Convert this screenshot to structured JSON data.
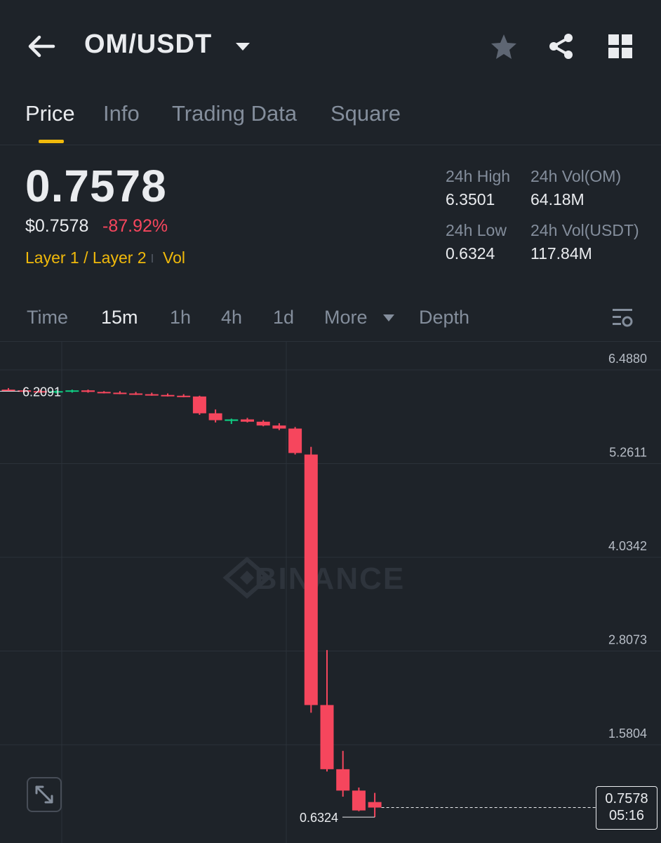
{
  "header": {
    "pair": "OM/USDT",
    "icons": [
      "back-arrow-icon",
      "chevron-down-icon",
      "star-icon",
      "share-icon",
      "grid-icon"
    ]
  },
  "tabs": [
    {
      "label": "Price",
      "active": true
    },
    {
      "label": "Info",
      "active": false
    },
    {
      "label": "Trading Data",
      "active": false
    },
    {
      "label": "Square",
      "active": false
    }
  ],
  "ticker": {
    "last_price": "0.7578",
    "usd_price": "$0.7578",
    "change_pct": "-87.92%",
    "tag": "Layer 1 / Layer 2",
    "tag_vol": "Vol"
  },
  "stats": {
    "high_label": "24h High",
    "high_value": "6.3501",
    "vol_base_label": "24h Vol(OM)",
    "vol_base_value": "64.18M",
    "low_label": "24h Low",
    "low_value": "0.6324",
    "vol_quote_label": "24h Vol(USDT)",
    "vol_quote_value": "117.84M"
  },
  "timeframes": {
    "items": [
      "Time",
      "15m",
      "1h",
      "4h",
      "1d",
      "More",
      "Depth"
    ],
    "active": "15m"
  },
  "chart_data": {
    "type": "candlestick",
    "y_ticks": [
      "6.4880",
      "5.2611",
      "4.0342",
      "2.8073",
      "1.5804"
    ],
    "y_tick_values": [
      6.488,
      5.2611,
      4.0342,
      2.8073,
      1.5804
    ],
    "high_marker": "6.2091",
    "low_marker": "0.6324",
    "current_price": "0.7578",
    "countdown": "05:16",
    "watermark": "BINANCE",
    "up_color": "#0ecb81",
    "down_color": "#f6465d",
    "candles": [
      {
        "o": 6.23,
        "h": 6.25,
        "l": 6.21,
        "c": 6.22
      },
      {
        "o": 6.22,
        "h": 6.24,
        "l": 6.2,
        "c": 6.21
      },
      {
        "o": 6.21,
        "h": 6.23,
        "l": 6.19,
        "c": 6.2
      },
      {
        "o": 6.2,
        "h": 6.22,
        "l": 6.18,
        "c": 6.21
      },
      {
        "o": 6.21,
        "h": 6.23,
        "l": 6.19,
        "c": 6.22
      },
      {
        "o": 6.22,
        "h": 6.23,
        "l": 6.19,
        "c": 6.2
      },
      {
        "o": 6.2,
        "h": 6.21,
        "l": 6.18,
        "c": 6.19
      },
      {
        "o": 6.19,
        "h": 6.21,
        "l": 6.17,
        "c": 6.18
      },
      {
        "o": 6.18,
        "h": 6.2,
        "l": 6.16,
        "c": 6.17
      },
      {
        "o": 6.17,
        "h": 6.19,
        "l": 6.15,
        "c": 6.16
      },
      {
        "o": 6.16,
        "h": 6.18,
        "l": 6.14,
        "c": 6.15
      },
      {
        "o": 6.15,
        "h": 6.17,
        "l": 6.13,
        "c": 6.14
      },
      {
        "o": 6.14,
        "h": 6.15,
        "l": 5.9,
        "c": 5.92
      },
      {
        "o": 5.92,
        "h": 5.97,
        "l": 5.8,
        "c": 5.83
      },
      {
        "o": 5.82,
        "h": 5.85,
        "l": 5.78,
        "c": 5.84
      },
      {
        "o": 5.84,
        "h": 5.86,
        "l": 5.8,
        "c": 5.81
      },
      {
        "o": 5.81,
        "h": 5.83,
        "l": 5.75,
        "c": 5.76
      },
      {
        "o": 5.76,
        "h": 5.79,
        "l": 5.7,
        "c": 5.72
      },
      {
        "o": 5.72,
        "h": 5.74,
        "l": 5.38,
        "c": 5.4
      },
      {
        "o": 5.38,
        "h": 5.48,
        "l": 2.0,
        "c": 2.1
      },
      {
        "o": 2.1,
        "h": 2.82,
        "l": 1.23,
        "c": 1.26
      },
      {
        "o": 1.26,
        "h": 1.5,
        "l": 0.9,
        "c": 0.98
      },
      {
        "o": 0.98,
        "h": 1.02,
        "l": 0.71,
        "c": 0.72
      },
      {
        "o": 0.83,
        "h": 0.95,
        "l": 0.6324,
        "c": 0.7578
      }
    ]
  }
}
